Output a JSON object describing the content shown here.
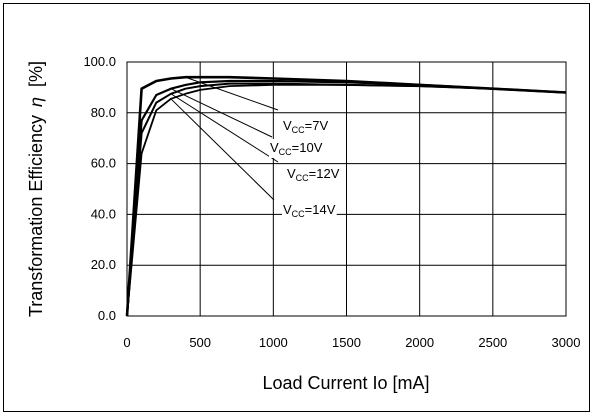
{
  "chart_data": {
    "type": "line",
    "title": "",
    "xlabel": "Load Current Io [mA]",
    "ylabel": "Transformation Efficiency",
    "ylabel_symbol": "η",
    "ylabel_unit": "[%]",
    "xlim": [
      0,
      3000
    ],
    "ylim": [
      0,
      100
    ],
    "x_ticks": [
      "0",
      "500",
      "1000",
      "1500",
      "2000",
      "2500",
      "3000"
    ],
    "y_ticks": [
      "0.0",
      "20.0",
      "40.0",
      "60.0",
      "80.0",
      "100.0"
    ],
    "grid": true,
    "series": [
      {
        "name": "VCC=7V",
        "x": [
          0,
          100,
          200,
          300,
          400,
          500,
          700,
          1000,
          1500,
          2000,
          2500,
          3000
        ],
        "y": [
          0,
          89.5,
          92.5,
          93.5,
          94.0,
          94.0,
          94.0,
          93.5,
          92.5,
          91.0,
          89.5,
          88.0
        ]
      },
      {
        "name": "VCC=10V",
        "x": [
          0,
          100,
          200,
          300,
          400,
          500,
          700,
          1000,
          1500,
          2000,
          2500,
          3000
        ],
        "y": [
          0,
          77,
          87,
          89.5,
          91.0,
          92.0,
          92.5,
          92.5,
          92.0,
          91.0,
          89.5,
          88.0
        ]
      },
      {
        "name": "VCC=12V",
        "x": [
          0,
          100,
          200,
          300,
          400,
          500,
          700,
          1000,
          1500,
          2000,
          2500,
          3000
        ],
        "y": [
          0,
          72,
          84,
          87.5,
          89.5,
          90.5,
          91.5,
          91.5,
          91.0,
          90.5,
          89.5,
          88.0
        ]
      },
      {
        "name": "VCC=14V",
        "x": [
          0,
          100,
          200,
          300,
          400,
          500,
          700,
          1000,
          1500,
          2000,
          2500,
          3000
        ],
        "y": [
          0,
          64,
          81,
          85.5,
          87.5,
          89.0,
          90.5,
          91.0,
          91.0,
          90.5,
          89.5,
          88.0
        ]
      }
    ],
    "annotations": [
      {
        "main": "V",
        "sub": "CC",
        "rest": "=7V"
      },
      {
        "main": "V",
        "sub": "CC",
        "rest": "=10V"
      },
      {
        "main": "V",
        "sub": "CC",
        "rest": "=12V"
      },
      {
        "main": "V",
        "sub": "CC",
        "rest": "=14V"
      }
    ]
  }
}
